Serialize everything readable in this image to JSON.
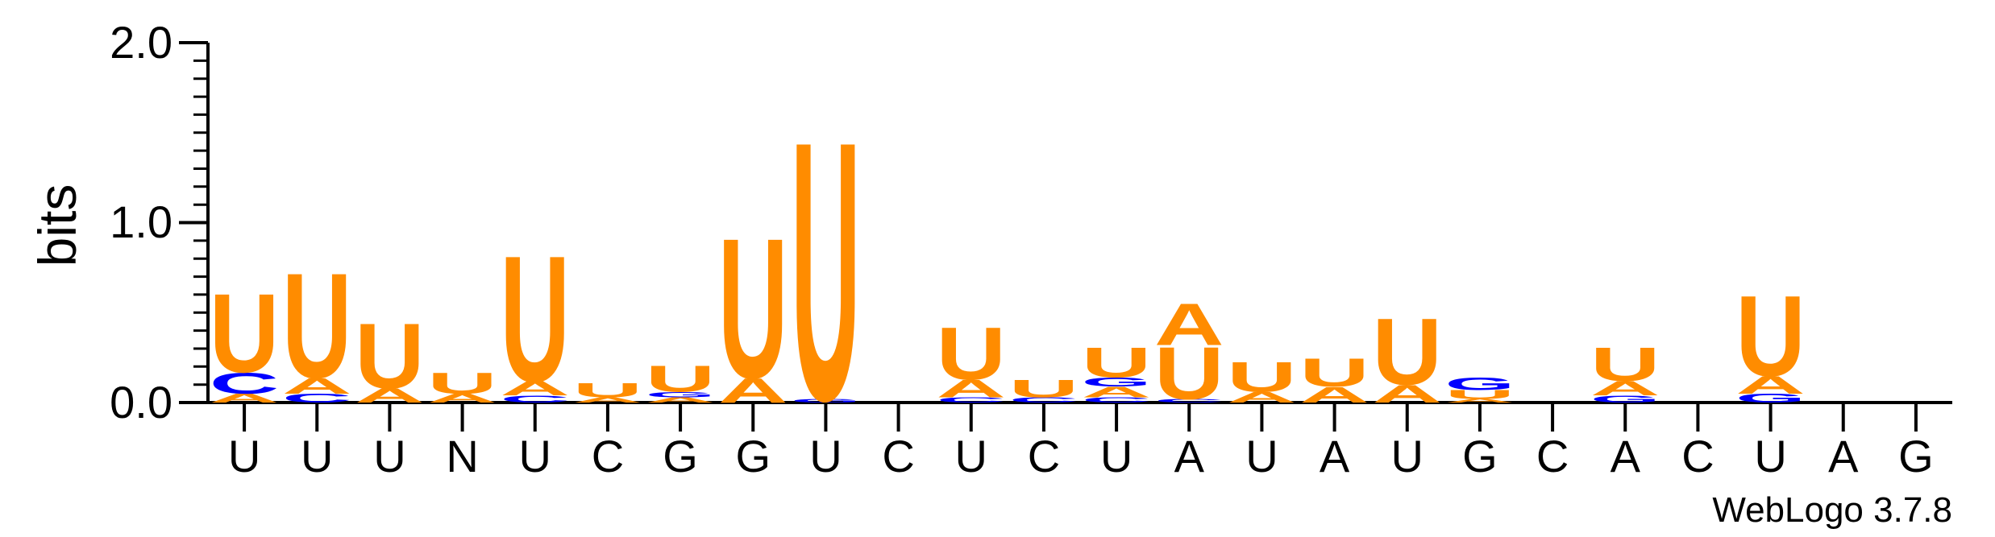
{
  "chart_data": {
    "type": "sequence-logo",
    "ylabel": "bits",
    "ylim": [
      0,
      2.0
    ],
    "y_ticks": [
      "0.0",
      "1.0",
      "2.0"
    ],
    "consensus_labels": [
      "U",
      "U",
      "U",
      "N",
      "U",
      "C",
      "G",
      "G",
      "U",
      "C",
      "U",
      "C",
      "U",
      "A",
      "U",
      "A",
      "U",
      "G",
      "C",
      "A",
      "C",
      "U",
      "A",
      "G"
    ],
    "colors": {
      "U": "#ff8c00",
      "A": "#ff8c00",
      "C": "#0000ff",
      "G": "#0000ff"
    },
    "positions": [
      [
        {
          "r": "A",
          "h": 0.05
        },
        {
          "r": "C",
          "h": 0.12
        },
        {
          "r": "U",
          "h": 0.45
        }
      ],
      [
        {
          "r": "C",
          "h": 0.05
        },
        {
          "r": "A",
          "h": 0.09
        },
        {
          "r": "U",
          "h": 0.6
        }
      ],
      [
        {
          "r": "A",
          "h": 0.08
        },
        {
          "r": "U",
          "h": 0.37
        }
      ],
      [
        {
          "r": "A",
          "h": 0.05
        },
        {
          "r": "U",
          "h": 0.12
        }
      ],
      [
        {
          "r": "C",
          "h": 0.04
        },
        {
          "r": "A",
          "h": 0.08
        },
        {
          "r": "U",
          "h": 0.72
        }
      ],
      [
        {
          "r": "A",
          "h": 0.03
        },
        {
          "r": "U",
          "h": 0.08
        }
      ],
      [
        {
          "r": "A",
          "h": 0.03
        },
        {
          "r": "G",
          "h": 0.03
        },
        {
          "r": "U",
          "h": 0.15
        }
      ],
      [
        {
          "r": "A",
          "h": 0.14
        },
        {
          "r": "U",
          "h": 0.8
        }
      ],
      [
        {
          "r": "G",
          "h": 0.02
        },
        {
          "r": "U",
          "h": 1.48
        }
      ],
      [],
      [
        {
          "r": "C",
          "h": 0.03
        },
        {
          "r": "A",
          "h": 0.1
        },
        {
          "r": "U",
          "h": 0.3
        }
      ],
      [
        {
          "r": "C",
          "h": 0.03
        },
        {
          "r": "U",
          "h": 0.1
        }
      ],
      [
        {
          "r": "C",
          "h": 0.03
        },
        {
          "r": "A",
          "h": 0.06
        },
        {
          "r": "G",
          "h": 0.05
        },
        {
          "r": "U",
          "h": 0.17
        }
      ],
      [
        {
          "r": "C",
          "h": 0.02
        },
        {
          "r": "U",
          "h": 0.3
        },
        {
          "r": "A",
          "h": 0.24
        }
      ],
      [
        {
          "r": "A",
          "h": 0.06
        },
        {
          "r": "U",
          "h": 0.17
        }
      ],
      [
        {
          "r": "A",
          "h": 0.09
        },
        {
          "r": "U",
          "h": 0.16
        }
      ],
      [
        {
          "r": "A",
          "h": 0.1
        },
        {
          "r": "U",
          "h": 0.38
        }
      ],
      [
        {
          "r": "A",
          "h": 0.02
        },
        {
          "r": "U",
          "h": 0.05
        },
        {
          "r": "G",
          "h": 0.07
        }
      ],
      [],
      [
        {
          "r": "G",
          "h": 0.04
        },
        {
          "r": "A",
          "h": 0.08
        },
        {
          "r": "U",
          "h": 0.19
        }
      ],
      [],
      [
        {
          "r": "G",
          "h": 0.05
        },
        {
          "r": "A",
          "h": 0.1
        },
        {
          "r": "U",
          "h": 0.46
        }
      ],
      [],
      []
    ]
  },
  "credit": "WebLogo 3.7.8"
}
